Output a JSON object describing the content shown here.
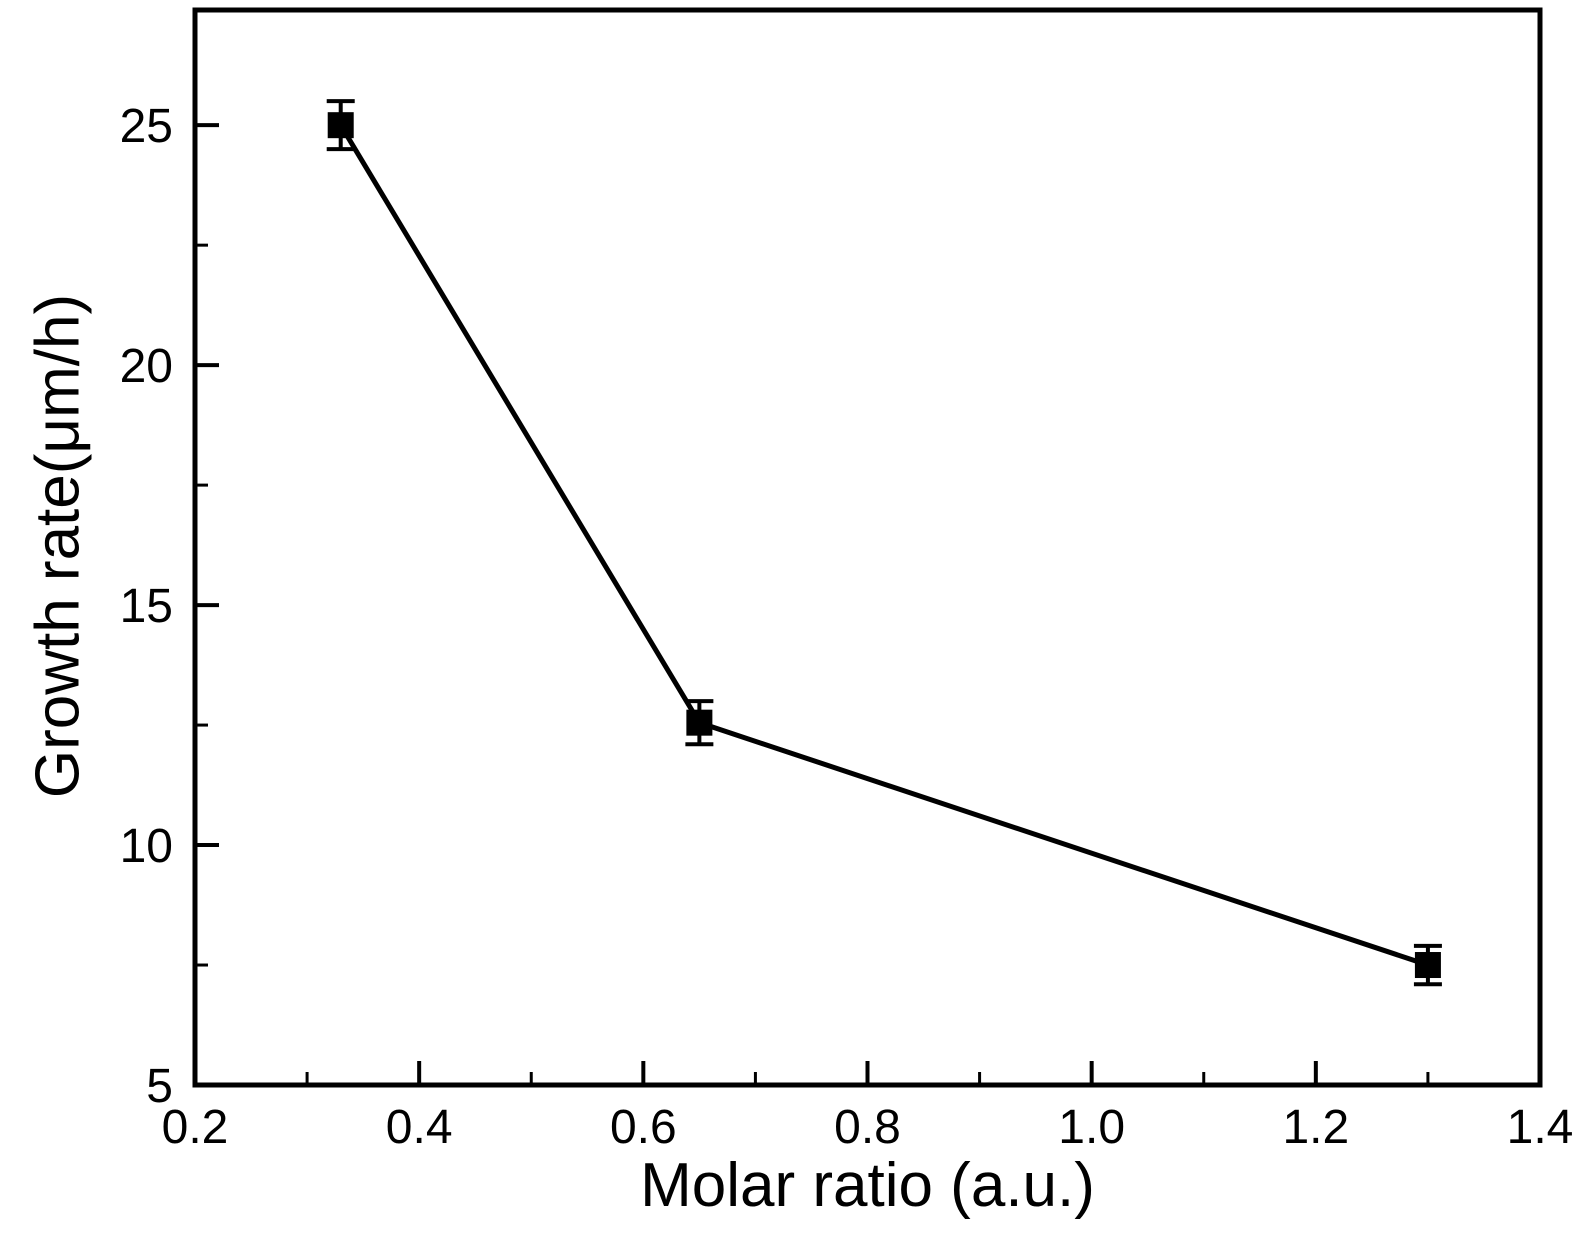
{
  "chart_data": {
    "type": "line",
    "title": "",
    "xlabel": "Molar ratio (a.u.)",
    "ylabel": "Growth rate(μm/h)",
    "xlim": [
      0.2,
      1.4
    ],
    "ylim": [
      5,
      27.4
    ],
    "x_major_ticks": [
      0.2,
      0.4,
      0.6,
      0.8,
      1.0,
      1.2,
      1.4
    ],
    "x_tick_labels": [
      "0.2",
      "0.4",
      "0.6",
      "0.8",
      "1.0",
      "1.2",
      "1.4"
    ],
    "x_minor_ticks": [
      0.3,
      0.5,
      0.7,
      0.9,
      1.1,
      1.3
    ],
    "y_major_ticks": [
      5,
      10,
      15,
      20,
      25
    ],
    "y_tick_labels": [
      "5",
      "10",
      "15",
      "20",
      "25"
    ],
    "y_minor_ticks": [
      7.5,
      12.5,
      17.5,
      22.5
    ],
    "grid": false,
    "legend": false,
    "frame_color": "#000000",
    "series": [
      {
        "name": "growth-rate",
        "marker": "square",
        "color": "#000000",
        "x": [
          0.33,
          0.65,
          1.3
        ],
        "y": [
          25.0,
          12.55,
          7.5
        ],
        "yerr": [
          0.5,
          0.45,
          0.4
        ]
      }
    ]
  }
}
